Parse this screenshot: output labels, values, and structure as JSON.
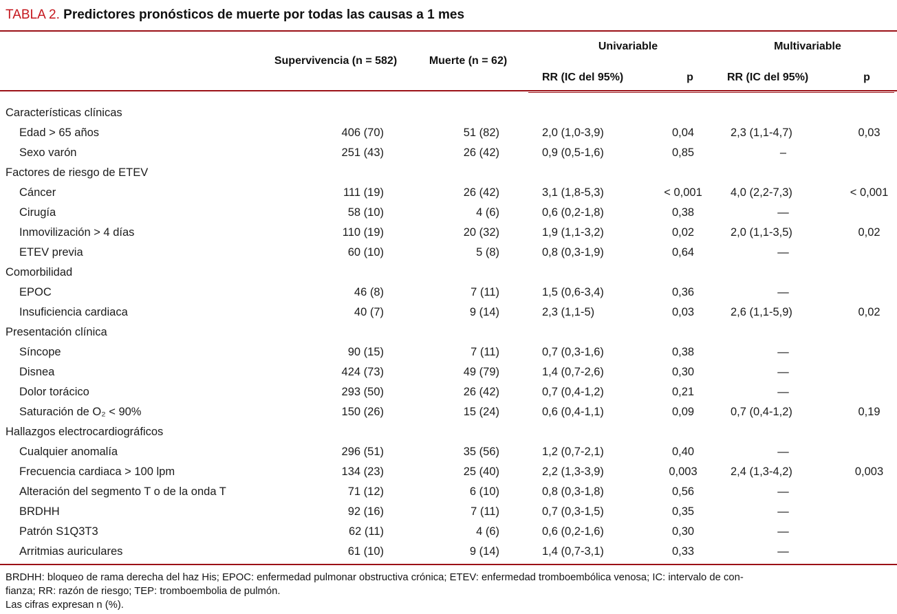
{
  "title": {
    "label": "TABLA 2.",
    "text": "Predictores pronósticos de muerte por todas las causas a 1 mes"
  },
  "colors": {
    "title_red": "#c4161d",
    "rule_red": "#9b1016",
    "text": "#1b1b1b"
  },
  "header": {
    "col_supervivencia": "Supervivencia (n = 582)",
    "col_muerte": "Muerte (n = 62)",
    "group_univariable": "Univariable",
    "group_multivariable": "Multivariable",
    "col_rr_uni": "RR (IC del 95%)",
    "col_p_uni": "p",
    "col_rr_multi": "RR (IC del 95%)",
    "col_p_multi": "p"
  },
  "rows": [
    {
      "type": "section",
      "label": "Características clínicas",
      "supervivencia": "",
      "muerte": "",
      "rr_uni": "",
      "p_uni": "",
      "rr_multi": "",
      "p_multi": ""
    },
    {
      "type": "item",
      "label": "Edad > 65 años",
      "supervivencia": "406 (70)",
      "muerte": "51 (82)",
      "rr_uni": "2,0 (1,0-3,9)",
      "p_uni": "0,04",
      "rr_multi": "2,3 (1,1-4,7)",
      "p_multi": "0,03"
    },
    {
      "type": "item",
      "label": "Sexo varón",
      "supervivencia": "251 (43)",
      "muerte": "26 (42)",
      "rr_uni": "0,9 (0,5-1,6)",
      "p_uni": "0,85",
      "rr_multi": "–",
      "p_multi": ""
    },
    {
      "type": "section",
      "label": "Factores de riesgo de ETEV",
      "supervivencia": "",
      "muerte": "",
      "rr_uni": "",
      "p_uni": "",
      "rr_multi": "",
      "p_multi": ""
    },
    {
      "type": "item",
      "label": "Cáncer",
      "supervivencia": "111 (19)",
      "muerte": "26 (42)",
      "rr_uni": "3,1 (1,8-5,3)",
      "p_uni": "< 0,001",
      "rr_multi": "4,0 (2,2-7,3)",
      "p_multi": "< 0,001"
    },
    {
      "type": "item",
      "label": "Cirugía",
      "supervivencia": "58 (10)",
      "muerte": "4 (6)",
      "rr_uni": "0,6 (0,2-1,8)",
      "p_uni": "0,38",
      "rr_multi": "—",
      "p_multi": ""
    },
    {
      "type": "item",
      "label": "Inmovilización > 4 días",
      "supervivencia": "110 (19)",
      "muerte": "20 (32)",
      "rr_uni": "1,9 (1,1-3,2)",
      "p_uni": "0,02",
      "rr_multi": "2,0 (1,1-3,5)",
      "p_multi": "0,02"
    },
    {
      "type": "item",
      "label": "ETEV previa",
      "supervivencia": "60 (10)",
      "muerte": "5 (8)",
      "rr_uni": "0,8 (0,3-1,9)",
      "p_uni": "0,64",
      "rr_multi": "—",
      "p_multi": ""
    },
    {
      "type": "section",
      "label": "Comorbilidad",
      "supervivencia": "",
      "muerte": "",
      "rr_uni": "",
      "p_uni": "",
      "rr_multi": "",
      "p_multi": ""
    },
    {
      "type": "item",
      "label": "EPOC",
      "supervivencia": "46 (8)",
      "muerte": "7 (11)",
      "rr_uni": "1,5 (0,6-3,4)",
      "p_uni": "0,36",
      "rr_multi": "—",
      "p_multi": ""
    },
    {
      "type": "item",
      "label": "Insuficiencia cardiaca",
      "supervivencia": "40 (7)",
      "muerte": "9 (14)",
      "rr_uni": "2,3 (1,1-5)",
      "p_uni": "0,03",
      "rr_multi": "2,6 (1,1-5,9)",
      "p_multi": "0,02"
    },
    {
      "type": "section",
      "label": "Presentación clínica",
      "supervivencia": "",
      "muerte": "",
      "rr_uni": "",
      "p_uni": "",
      "rr_multi": "",
      "p_multi": ""
    },
    {
      "type": "item",
      "label": "Síncope",
      "supervivencia": "90 (15)",
      "muerte": "7 (11)",
      "rr_uni": "0,7 (0,3-1,6)",
      "p_uni": "0,38",
      "rr_multi": "—",
      "p_multi": ""
    },
    {
      "type": "item",
      "label": "Disnea",
      "supervivencia": "424 (73)",
      "muerte": "49 (79)",
      "rr_uni": "1,4 (0,7-2,6)",
      "p_uni": "0,30",
      "rr_multi": "—",
      "p_multi": ""
    },
    {
      "type": "item",
      "label": "Dolor torácico",
      "supervivencia": "293 (50)",
      "muerte": "26 (42)",
      "rr_uni": "0,7 (0,4-1,2)",
      "p_uni": "0,21",
      "rr_multi": "—",
      "p_multi": ""
    },
    {
      "type": "item",
      "label": "Saturación de O₂ < 90%",
      "supervivencia": "150 (26)",
      "muerte": "15 (24)",
      "rr_uni": "0,6 (0,4-1,1)",
      "p_uni": "0,09",
      "rr_multi": "0,7 (0,4-1,2)",
      "p_multi": "0,19"
    },
    {
      "type": "section",
      "label": "Hallazgos electrocardiográficos",
      "supervivencia": "",
      "muerte": "",
      "rr_uni": "",
      "p_uni": "",
      "rr_multi": "",
      "p_multi": ""
    },
    {
      "type": "item",
      "label": "Cualquier anomalía",
      "supervivencia": "296 (51)",
      "muerte": "35 (56)",
      "rr_uni": "1,2 (0,7-2,1)",
      "p_uni": "0,40",
      "rr_multi": "—",
      "p_multi": ""
    },
    {
      "type": "item",
      "label": "Frecuencia cardiaca > 100 lpm",
      "supervivencia": "134 (23)",
      "muerte": "25 (40)",
      "rr_uni": "2,2 (1,3-3,9)",
      "p_uni": "0,003",
      "rr_multi": "2,4 (1,3-4,2)",
      "p_multi": "0,003"
    },
    {
      "type": "item",
      "label": "Alteración del segmento T o de la onda T",
      "supervivencia": "71 (12)",
      "muerte": "6 (10)",
      "rr_uni": "0,8 (0,3-1,8)",
      "p_uni": "0,56",
      "rr_multi": "—",
      "p_multi": ""
    },
    {
      "type": "item",
      "label": "BRDHH",
      "supervivencia": "92 (16)",
      "muerte": "7 (11)",
      "rr_uni": "0,7 (0,3-1,5)",
      "p_uni": "0,35",
      "rr_multi": "—",
      "p_multi": ""
    },
    {
      "type": "item",
      "label": "Patrón S1Q3T3",
      "supervivencia": "62 (11)",
      "muerte": "4 (6)",
      "rr_uni": "0,6 (0,2-1,6)",
      "p_uni": "0,30",
      "rr_multi": "—",
      "p_multi": ""
    },
    {
      "type": "item",
      "label": "Arritmias auriculares",
      "supervivencia": "61 (10)",
      "muerte": "9 (14)",
      "rr_uni": "1,4 (0,7-3,1)",
      "p_uni": "0,33",
      "rr_multi": "—",
      "p_multi": ""
    }
  ],
  "footnotes": [
    "BRDHH: bloqueo de rama derecha del haz His; EPOC: enfermedad pulmonar obstructiva crónica; ETEV: enfermedad tromboembólica venosa; IC: intervalo de con-",
    "fianza; RR: razón de riesgo; TEP: tromboembolia de pulmón.",
    "Las cifras expresan n (%)."
  ]
}
